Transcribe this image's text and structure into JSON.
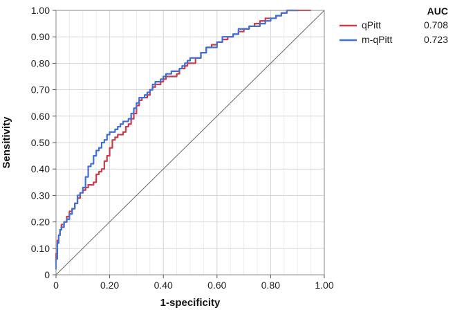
{
  "chart_data": {
    "type": "line",
    "xlabel": "1-specificity",
    "ylabel": "Sensitivity",
    "xlim": [
      0,
      1
    ],
    "ylim": [
      0,
      1
    ],
    "x_ticks": [
      "0",
      "0.20",
      "0.40",
      "0.60",
      "0.80",
      "1.00"
    ],
    "y_ticks": [
      "0",
      "0.10",
      "0.20",
      "0.30",
      "0.40",
      "0.50",
      "0.60",
      "0.70",
      "0.80",
      "0.90",
      "1.00"
    ],
    "grid": true,
    "legend_position": "top-right",
    "legend_header": "AUC",
    "reference_line": {
      "x": [
        0,
        1
      ],
      "y": [
        0,
        1
      ],
      "color": "#666666"
    },
    "series": [
      {
        "name": "qPitt",
        "auc": "0.708",
        "color": "#cc3b4a",
        "x": [
          0,
          0.005,
          0.01,
          0.015,
          0.02,
          0.03,
          0.04,
          0.05,
          0.06,
          0.07,
          0.08,
          0.09,
          0.1,
          0.11,
          0.12,
          0.13,
          0.14,
          0.15,
          0.16,
          0.17,
          0.18,
          0.19,
          0.2,
          0.21,
          0.22,
          0.23,
          0.24,
          0.25,
          0.26,
          0.27,
          0.28,
          0.29,
          0.3,
          0.31,
          0.32,
          0.33,
          0.34,
          0.35,
          0.36,
          0.37,
          0.38,
          0.39,
          0.4,
          0.41,
          0.42,
          0.43,
          0.44,
          0.45,
          0.46,
          0.47,
          0.48,
          0.49,
          0.5,
          0.52,
          0.54,
          0.56,
          0.58,
          0.6,
          0.62,
          0.64,
          0.66,
          0.68,
          0.7,
          0.72,
          0.74,
          0.76,
          0.78,
          0.8,
          0.82,
          0.84,
          0.86,
          0.88,
          0.9,
          0.95
        ],
        "y": [
          0.05,
          0.08,
          0.13,
          0.15,
          0.17,
          0.19,
          0.2,
          0.22,
          0.24,
          0.25,
          0.27,
          0.29,
          0.31,
          0.32,
          0.33,
          0.34,
          0.34,
          0.35,
          0.38,
          0.39,
          0.4,
          0.43,
          0.45,
          0.48,
          0.51,
          0.52,
          0.53,
          0.53,
          0.54,
          0.56,
          0.57,
          0.59,
          0.61,
          0.64,
          0.66,
          0.67,
          0.67,
          0.68,
          0.7,
          0.71,
          0.72,
          0.72,
          0.73,
          0.74,
          0.75,
          0.75,
          0.75,
          0.75,
          0.76,
          0.78,
          0.78,
          0.79,
          0.8,
          0.8,
          0.82,
          0.84,
          0.86,
          0.87,
          0.88,
          0.89,
          0.9,
          0.91,
          0.92,
          0.93,
          0.94,
          0.95,
          0.96,
          0.97,
          0.97,
          0.98,
          0.99,
          1.0,
          1.0,
          1.0
        ]
      },
      {
        "name": "m-qPitt",
        "auc": "0.723",
        "color": "#3f6fd6",
        "x": [
          0,
          0.005,
          0.01,
          0.015,
          0.02,
          0.03,
          0.04,
          0.05,
          0.06,
          0.07,
          0.08,
          0.09,
          0.1,
          0.11,
          0.12,
          0.13,
          0.14,
          0.15,
          0.16,
          0.17,
          0.18,
          0.19,
          0.2,
          0.21,
          0.22,
          0.23,
          0.24,
          0.25,
          0.26,
          0.27,
          0.28,
          0.29,
          0.3,
          0.31,
          0.32,
          0.33,
          0.34,
          0.35,
          0.36,
          0.37,
          0.38,
          0.39,
          0.4,
          0.41,
          0.42,
          0.43,
          0.44,
          0.45,
          0.46,
          0.47,
          0.48,
          0.49,
          0.5,
          0.52,
          0.54,
          0.56,
          0.58,
          0.6,
          0.62,
          0.64,
          0.66,
          0.68,
          0.7,
          0.72,
          0.74,
          0.76,
          0.78,
          0.8,
          0.82,
          0.84,
          0.86,
          0.88,
          0.9
        ],
        "y": [
          0.02,
          0.06,
          0.12,
          0.15,
          0.17,
          0.18,
          0.2,
          0.21,
          0.23,
          0.25,
          0.27,
          0.3,
          0.31,
          0.33,
          0.37,
          0.41,
          0.42,
          0.45,
          0.47,
          0.48,
          0.5,
          0.51,
          0.53,
          0.54,
          0.54,
          0.55,
          0.56,
          0.57,
          0.58,
          0.58,
          0.59,
          0.61,
          0.63,
          0.65,
          0.67,
          0.67,
          0.68,
          0.69,
          0.7,
          0.72,
          0.73,
          0.73,
          0.74,
          0.75,
          0.76,
          0.76,
          0.77,
          0.77,
          0.77,
          0.78,
          0.79,
          0.8,
          0.81,
          0.82,
          0.82,
          0.84,
          0.86,
          0.86,
          0.88,
          0.9,
          0.9,
          0.91,
          0.93,
          0.93,
          0.94,
          0.94,
          0.95,
          0.96,
          0.97,
          0.98,
          0.99,
          1.0,
          1.0
        ]
      }
    ]
  }
}
